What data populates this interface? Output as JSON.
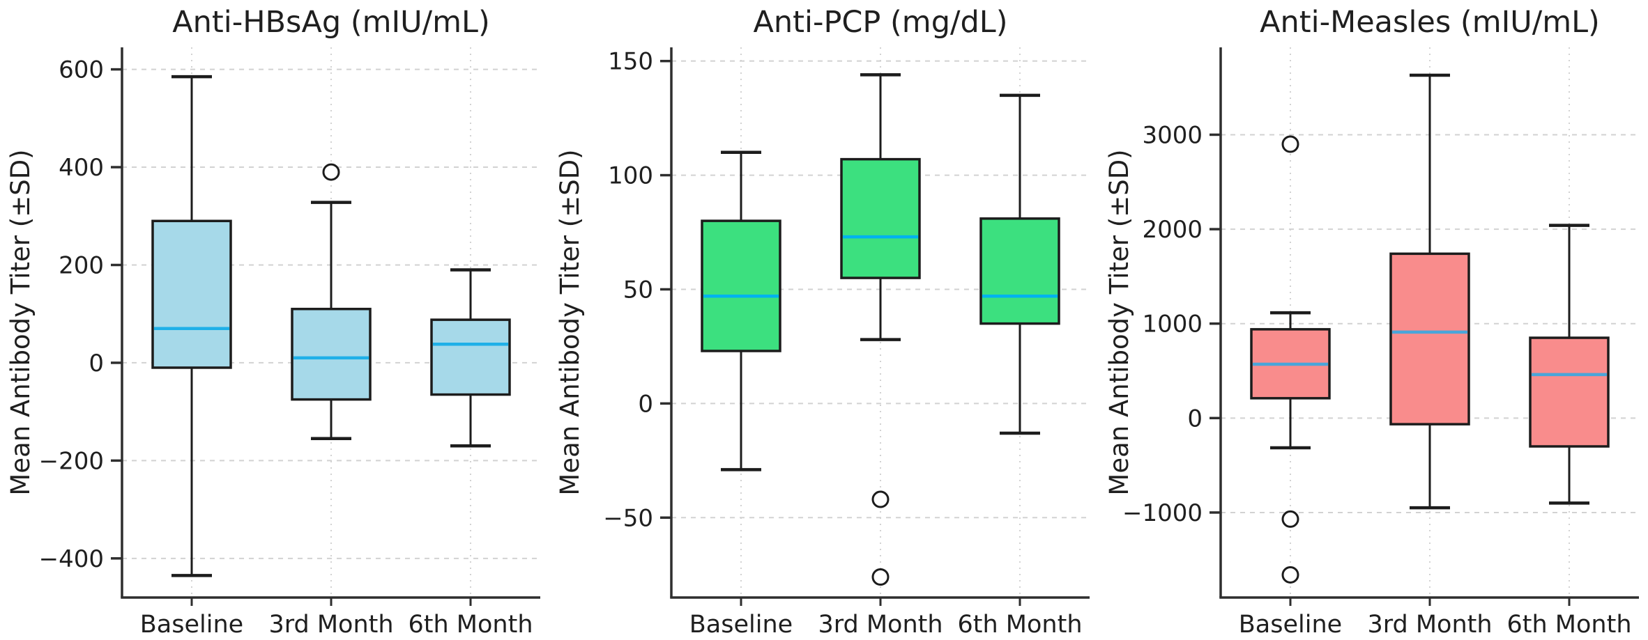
{
  "figure": {
    "ylabel": "Mean Antibody Titer (±SD)",
    "categories": [
      "Baseline",
      "3rd Month",
      "6th Month"
    ],
    "style": {
      "background": "#ffffff",
      "text_color": "#1f1f1f",
      "grid_color": "#d2d2d2",
      "spine_color": "#2e2e2e",
      "box_edge_color": "#1c1c1c",
      "outlier_fill": "#ffffff"
    }
  },
  "chart_data": [
    {
      "type": "box",
      "title": "Anti-HBsAg (mIU/mL)",
      "ylabel": "Mean Antibody Titer (±SD)",
      "categories": [
        "Baseline",
        "3rd Month",
        "6th Month"
      ],
      "ylim": [
        -480,
        645
      ],
      "yticks": [
        -400,
        -200,
        0,
        200,
        400,
        600
      ],
      "grid": true,
      "legend": false,
      "box_fill": "#a6d9e9",
      "median_color": "#1fb0e8",
      "boxes": [
        {
          "category": "Baseline",
          "whisker_low": -435,
          "q1": -10,
          "median": 70,
          "q3": 290,
          "whisker_high": 585,
          "outliers": []
        },
        {
          "category": "3rd Month",
          "whisker_low": -155,
          "q1": -75,
          "median": 10,
          "q3": 110,
          "whisker_high": 328,
          "outliers": [
            390
          ]
        },
        {
          "category": "6th Month",
          "whisker_low": -170,
          "q1": -65,
          "median": 38,
          "q3": 88,
          "whisker_high": 190,
          "outliers": []
        }
      ]
    },
    {
      "type": "box",
      "title": "Anti-PCP (mg/dL)",
      "ylabel": "Mean Antibody Titer (±SD)",
      "categories": [
        "Baseline",
        "3rd Month",
        "6th Month"
      ],
      "ylim": [
        -85,
        156
      ],
      "yticks": [
        -50,
        0,
        50,
        100,
        150
      ],
      "grid": true,
      "legend": false,
      "box_fill": "#3ce07f",
      "median_color": "#00b2ef",
      "boxes": [
        {
          "category": "Baseline",
          "whisker_low": -29,
          "q1": 23,
          "median": 47,
          "q3": 80,
          "whisker_high": 110,
          "outliers": []
        },
        {
          "category": "3rd Month",
          "whisker_low": 28,
          "q1": 55,
          "median": 73,
          "q3": 107,
          "whisker_high": 144,
          "outliers": [
            -42,
            -76
          ]
        },
        {
          "category": "6th Month",
          "whisker_low": -13,
          "q1": 35,
          "median": 47,
          "q3": 81,
          "whisker_high": 135,
          "outliers": []
        }
      ]
    },
    {
      "type": "box",
      "title": "Anti-Measles (mIU/mL)",
      "ylabel": "Mean Antibody Titer (±SD)",
      "categories": [
        "Baseline",
        "3rd Month",
        "6th Month"
      ],
      "ylim": [
        -1900,
        3925
      ],
      "yticks": [
        -1000,
        0,
        1000,
        2000,
        3000
      ],
      "grid": true,
      "legend": false,
      "box_fill": "#f98c8c",
      "median_color": "#4aa5d9",
      "boxes": [
        {
          "category": "Baseline",
          "whisker_low": -315,
          "q1": 210,
          "median": 570,
          "q3": 940,
          "whisker_high": 1115,
          "outliers": [
            2900,
            -1070,
            -1660
          ]
        },
        {
          "category": "3rd Month",
          "whisker_low": -950,
          "q1": -65,
          "median": 910,
          "q3": 1740,
          "whisker_high": 3630,
          "outliers": []
        },
        {
          "category": "6th Month",
          "whisker_low": -900,
          "q1": -300,
          "median": 460,
          "q3": 850,
          "whisker_high": 2040,
          "outliers": []
        }
      ]
    }
  ]
}
